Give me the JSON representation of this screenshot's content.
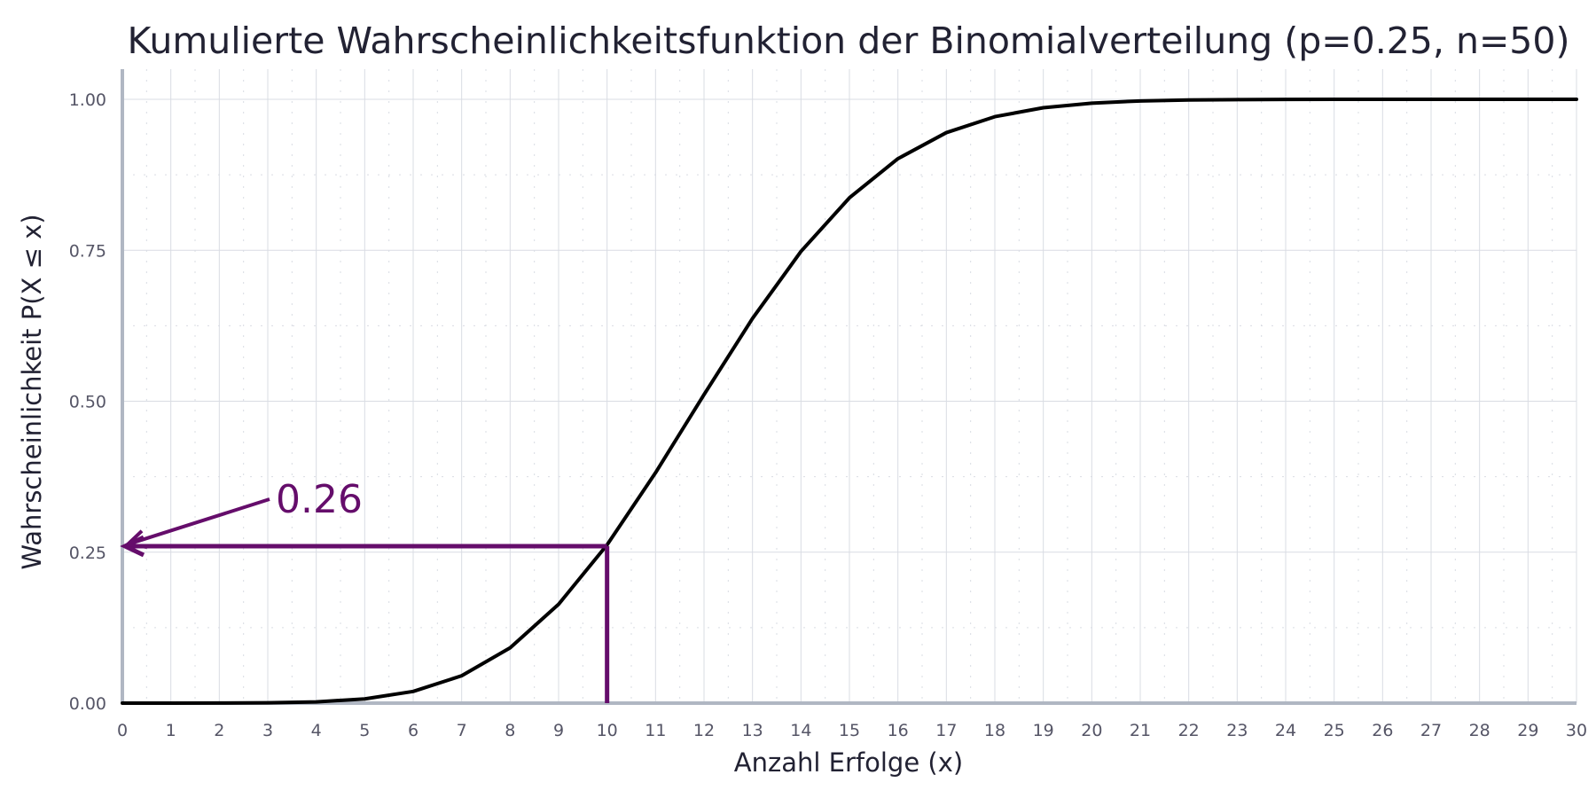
{
  "chart_data": {
    "type": "line",
    "title": "Kumulierte Wahrscheinlichkeitsfunktion der Binomialverteilung (p=0.25, n=50)",
    "xlabel": "Anzahl Erfolge (x)",
    "ylabel": "Wahrscheinlichkeit P(X ≤ x)",
    "xlim": [
      0,
      30
    ],
    "ylim": [
      0,
      1.05
    ],
    "x_ticks": [
      0,
      1,
      2,
      3,
      4,
      5,
      6,
      7,
      8,
      9,
      10,
      11,
      12,
      13,
      14,
      15,
      16,
      17,
      18,
      19,
      20,
      21,
      22,
      23,
      24,
      25,
      26,
      27,
      28,
      29,
      30
    ],
    "y_ticks": [
      "0.00",
      "0.25",
      "0.50",
      "0.75",
      "1.00"
    ],
    "grid": true,
    "series": [
      {
        "color": "#000000",
        "x": [
          0,
          1,
          2,
          3,
          4,
          5,
          6,
          7,
          8,
          9,
          10,
          11,
          12,
          13,
          14,
          15,
          16,
          17,
          18,
          19,
          20,
          21,
          22,
          23,
          24,
          25,
          26,
          27,
          28,
          29,
          30
        ],
        "values": [
          0.0,
          0.0,
          0.0001,
          0.0005,
          0.0021,
          0.007,
          0.0194,
          0.0453,
          0.0916,
          0.1637,
          0.2622,
          0.3816,
          0.511,
          0.637,
          0.7481,
          0.8369,
          0.9017,
          0.9449,
          0.9713,
          0.9861,
          0.9937,
          0.9974,
          0.999,
          0.9996,
          0.9999,
          1.0,
          1.0,
          1.0,
          1.0,
          1.0,
          1.0
        ]
      }
    ],
    "annotation": {
      "x": 10,
      "y": 0.26,
      "text": "0.26",
      "color": "#650d6b"
    },
    "colors": {
      "axis": "#b0b7c3",
      "grid": "#d9dce3",
      "line": "#000000",
      "annotation": "#650d6b"
    }
  }
}
